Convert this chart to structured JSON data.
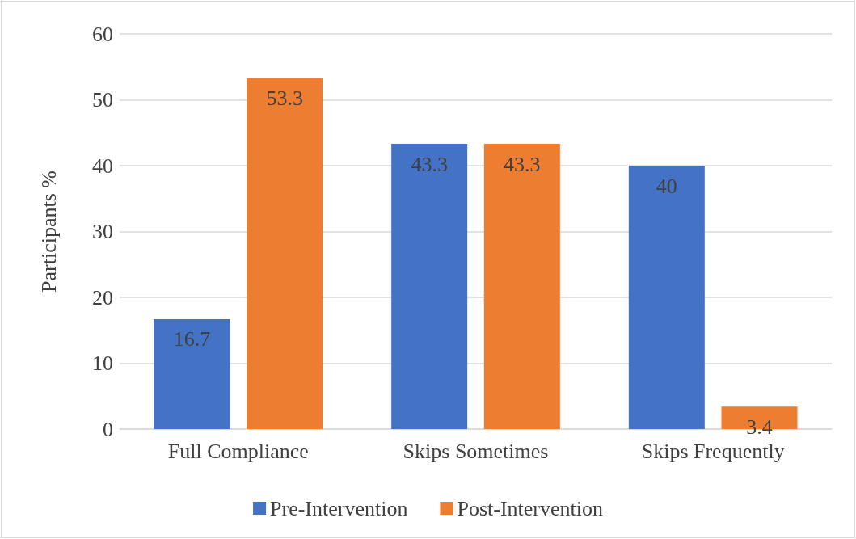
{
  "chart_data": {
    "type": "bar",
    "ylabel": "Participants %",
    "categories": [
      "Full Compliance",
      "Skips Sometimes",
      "Skips Frequently"
    ],
    "series": [
      {
        "name": "Pre-Intervention",
        "color": "#4472c4",
        "values": [
          16.7,
          43.3,
          40
        ]
      },
      {
        "name": "Post-Intervention",
        "color": "#ed7d31",
        "values": [
          53.3,
          43.3,
          3.4
        ]
      }
    ],
    "ylim": [
      0,
      60
    ],
    "yticks": [
      0,
      10,
      20,
      30,
      40,
      50,
      60
    ],
    "grid": "y",
    "legend": "bottom",
    "data_labels": true
  }
}
